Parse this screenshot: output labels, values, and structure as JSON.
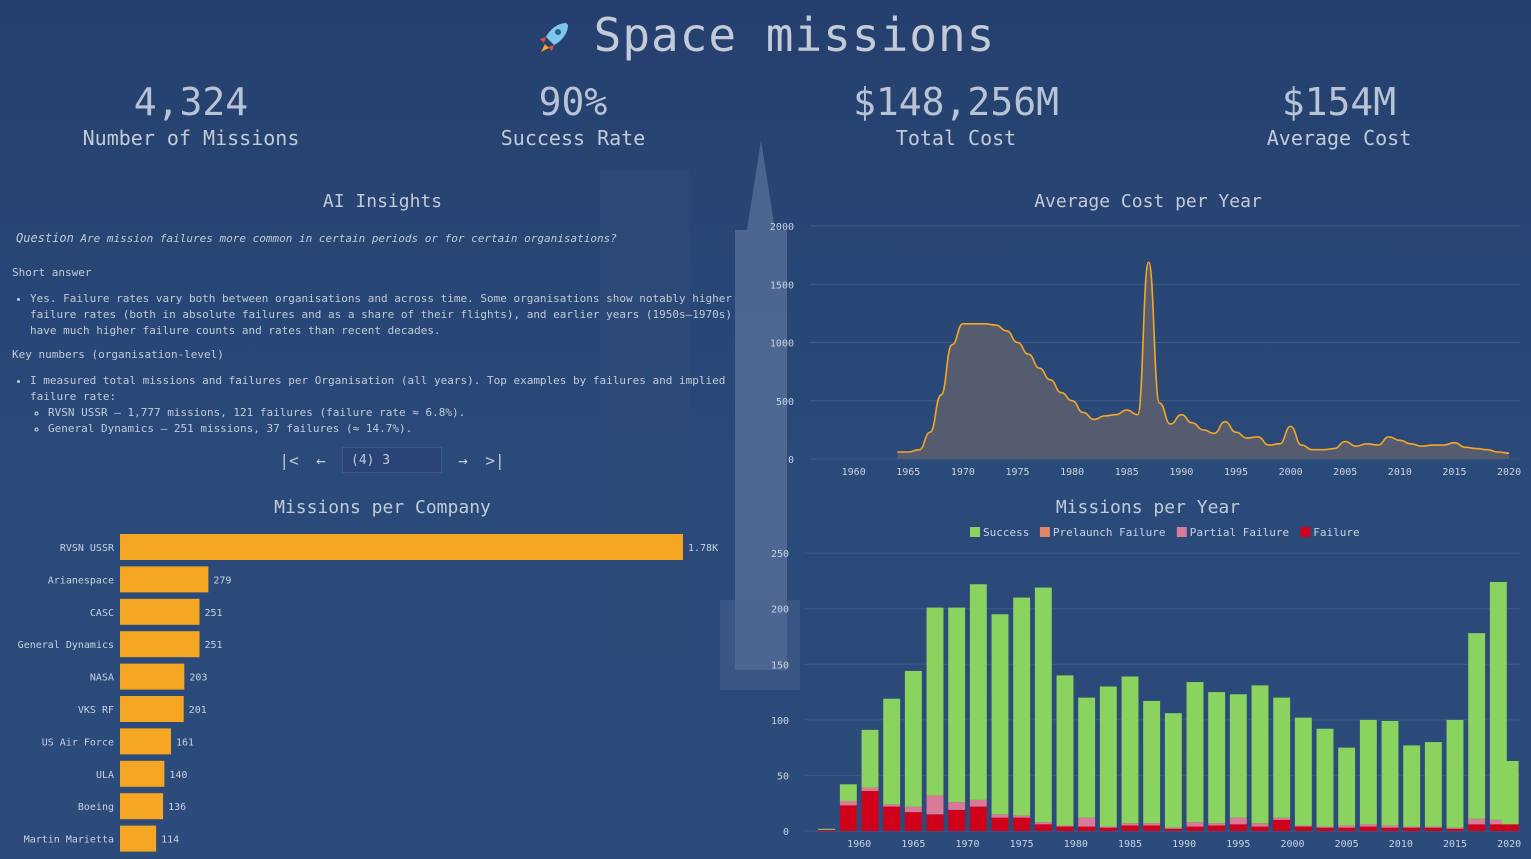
{
  "header": {
    "title": "Space missions",
    "icon": "rocket-icon"
  },
  "kpis": [
    {
      "value": "4,324",
      "label": "Number of Missions"
    },
    {
      "value": "90%",
      "label": "Success Rate"
    },
    {
      "value": "$148,256M",
      "label": "Total Cost"
    },
    {
      "value": "$154M",
      "label": "Average Cost"
    }
  ],
  "ai": {
    "title": "AI Insights",
    "question_label": "Question",
    "question": "Are mission failures more common in certain periods or for certain organisations?",
    "short_answer_heading": "Short answer",
    "short_answer": "Yes. Failure rates vary both between organisations and across time. Some organisations show notably higher failure rates (both in absolute failures and as a share of their flights), and earlier years (1950s–1970s) have much higher failure counts and rates than recent decades.",
    "key_numbers_heading": "Key numbers (organisation-level)",
    "key_numbers_intro": "I measured total missions and failures per Organisation (all years). Top examples by failures and implied failure rate:",
    "key_numbers": [
      "RVSN USSR — 1,777 missions, 121 failures (failure rate ≈ 6.8%).",
      "General Dynamics — 251 missions, 37 failures (≈ 14.7%)."
    ],
    "pager_value": "(4) 3"
  },
  "colors": {
    "accent_bar": "#f5a623",
    "line": "#f5a623",
    "success": "#8ad35f",
    "prelaunch": "#e0876a",
    "partial": "#d77b98",
    "failure": "#d0021b"
  },
  "chart_data": [
    {
      "type": "bar",
      "title": "Missions per Company",
      "orientation": "horizontal",
      "categories": [
        "RVSN USSR",
        "Arianespace",
        "CASC",
        "General Dynamics",
        "NASA",
        "VKS RF",
        "US Air Force",
        "ULA",
        "Boeing",
        "Martin Marietta"
      ],
      "values": [
        1777,
        279,
        251,
        251,
        203,
        201,
        161,
        140,
        136,
        114
      ],
      "labels": [
        "1.78K",
        "279",
        "251",
        "251",
        "203",
        "201",
        "161",
        "140",
        "136",
        "114"
      ]
    },
    {
      "type": "area",
      "title": "Average Cost per Year",
      "x": [
        1964,
        1965,
        1966,
        1967,
        1968,
        1969,
        1970,
        1971,
        1972,
        1973,
        1974,
        1975,
        1976,
        1977,
        1978,
        1979,
        1980,
        1981,
        1982,
        1983,
        1984,
        1985,
        1986,
        1987,
        1988,
        1989,
        1990,
        1991,
        1992,
        1993,
        1994,
        1995,
        1996,
        1997,
        1998,
        1999,
        2000,
        2001,
        2002,
        2003,
        2004,
        2005,
        2006,
        2007,
        2008,
        2009,
        2010,
        2011,
        2012,
        2013,
        2014,
        2015,
        2016,
        2017,
        2018,
        2019,
        2020
      ],
      "values": [
        60,
        60,
        80,
        230,
        550,
        980,
        1160,
        1160,
        1160,
        1150,
        1100,
        1000,
        900,
        780,
        680,
        570,
        500,
        400,
        340,
        370,
        380,
        420,
        380,
        1690,
        480,
        300,
        380,
        310,
        250,
        220,
        320,
        230,
        180,
        190,
        120,
        130,
        280,
        120,
        80,
        80,
        90,
        150,
        110,
        130,
        120,
        190,
        160,
        130,
        110,
        120,
        120,
        140,
        100,
        90,
        80,
        60,
        50
      ],
      "ylim": [
        0,
        2000
      ],
      "xlim": [
        1956,
        2021
      ],
      "yticks": [
        0,
        500,
        1000,
        1500,
        2000
      ],
      "xticks": [
        1960,
        1965,
        1970,
        1975,
        1980,
        1985,
        1990,
        1995,
        2000,
        2005,
        2010,
        2015,
        2020
      ]
    },
    {
      "type": "bar",
      "stacked": true,
      "title": "Missions per Year",
      "legend": [
        "Success",
        "Prelaunch Failure",
        "Partial Failure",
        "Failure"
      ],
      "x": [
        1957,
        1959,
        1961,
        1963,
        1965,
        1967,
        1969,
        1971,
        1973,
        1975,
        1977,
        1979,
        1981,
        1983,
        1985,
        1987,
        1989,
        1991,
        1993,
        1995,
        1997,
        1999,
        2001,
        2003,
        2005,
        2007,
        2009,
        2011,
        2013,
        2015,
        2017,
        2019
      ],
      "series": [
        {
          "name": "Failure",
          "values": [
            1,
            23,
            36,
            22,
            17,
            15,
            19,
            22,
            12,
            12,
            6,
            4,
            4,
            3,
            5,
            5,
            2,
            4,
            5,
            6,
            4,
            10,
            4,
            3,
            3,
            4,
            3,
            3,
            3,
            2,
            6,
            6
          ]
        },
        {
          "name": "Prelaunch Failure",
          "values": [
            0,
            0,
            0,
            0,
            0,
            0,
            0,
            0,
            0,
            0,
            0,
            0,
            0,
            0,
            0,
            0,
            0,
            0,
            0,
            0,
            0,
            0,
            0,
            0,
            0,
            0,
            0,
            0,
            0,
            0,
            0,
            0
          ]
        },
        {
          "name": "Partial Failure",
          "values": [
            0,
            4,
            3,
            2,
            5,
            17,
            7,
            6,
            3,
            2,
            2,
            1,
            8,
            1,
            2,
            2,
            1,
            4,
            2,
            6,
            3,
            2,
            1,
            1,
            2,
            2,
            2,
            1,
            1,
            1,
            5,
            4
          ]
        },
        {
          "name": "Success",
          "values": [
            1,
            15,
            52,
            95,
            122,
            169,
            175,
            194,
            180,
            196,
            211,
            135,
            108,
            126,
            132,
            110,
            103,
            126,
            118,
            111,
            124,
            108,
            97,
            88,
            70,
            94,
            94,
            73,
            76,
            97,
            167,
            214
          ]
        }
      ],
      "extra_x": [
        2020
      ],
      "extra_success_total": 63,
      "ylim": [
        0,
        260
      ],
      "yticks": [
        0,
        50,
        100,
        150,
        200,
        250
      ],
      "xticks": [
        1960,
        1965,
        1970,
        1975,
        1980,
        1985,
        1990,
        1995,
        2000,
        2005,
        2010,
        2015,
        2020
      ]
    }
  ]
}
